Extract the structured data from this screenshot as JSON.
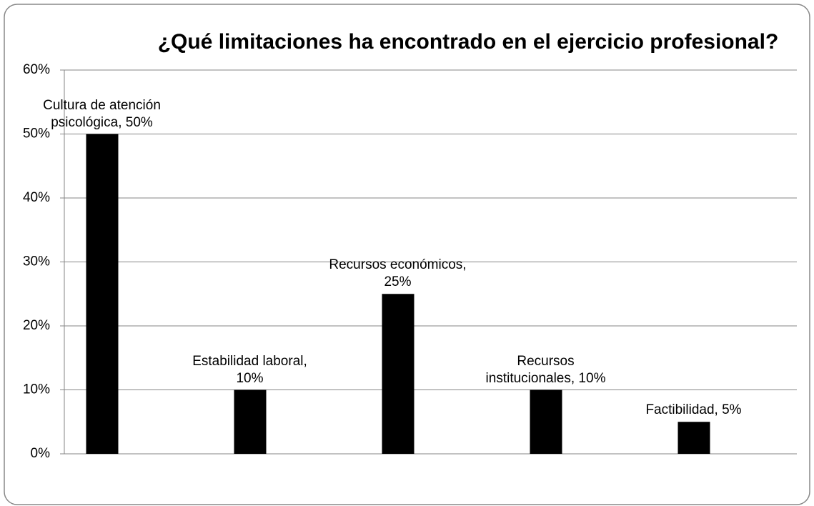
{
  "chart_data": {
    "type": "bar",
    "title": "¿Qué limitaciones ha encontrado en el ejercicio profesional?",
    "values": [
      50,
      10,
      25,
      10,
      5
    ],
    "value_labels": [
      "Cultura de atención psicológica, 50%",
      "Estabilidad laboral, 10%",
      "Recursos económicos, 25%",
      "Recursos institucionales, 10%",
      "Factibilidad, 5%"
    ],
    "color": "#000000",
    "ylim": [
      0,
      60
    ],
    "yticks": [
      {
        "value": 0,
        "label": "0%"
      },
      {
        "value": 10,
        "label": "10%"
      },
      {
        "value": 20,
        "label": "20%"
      },
      {
        "value": 30,
        "label": "30%"
      },
      {
        "value": 40,
        "label": "40%"
      },
      {
        "value": 50,
        "label": "50%"
      },
      {
        "value": 60,
        "label": "60%"
      }
    ],
    "grid": true
  }
}
